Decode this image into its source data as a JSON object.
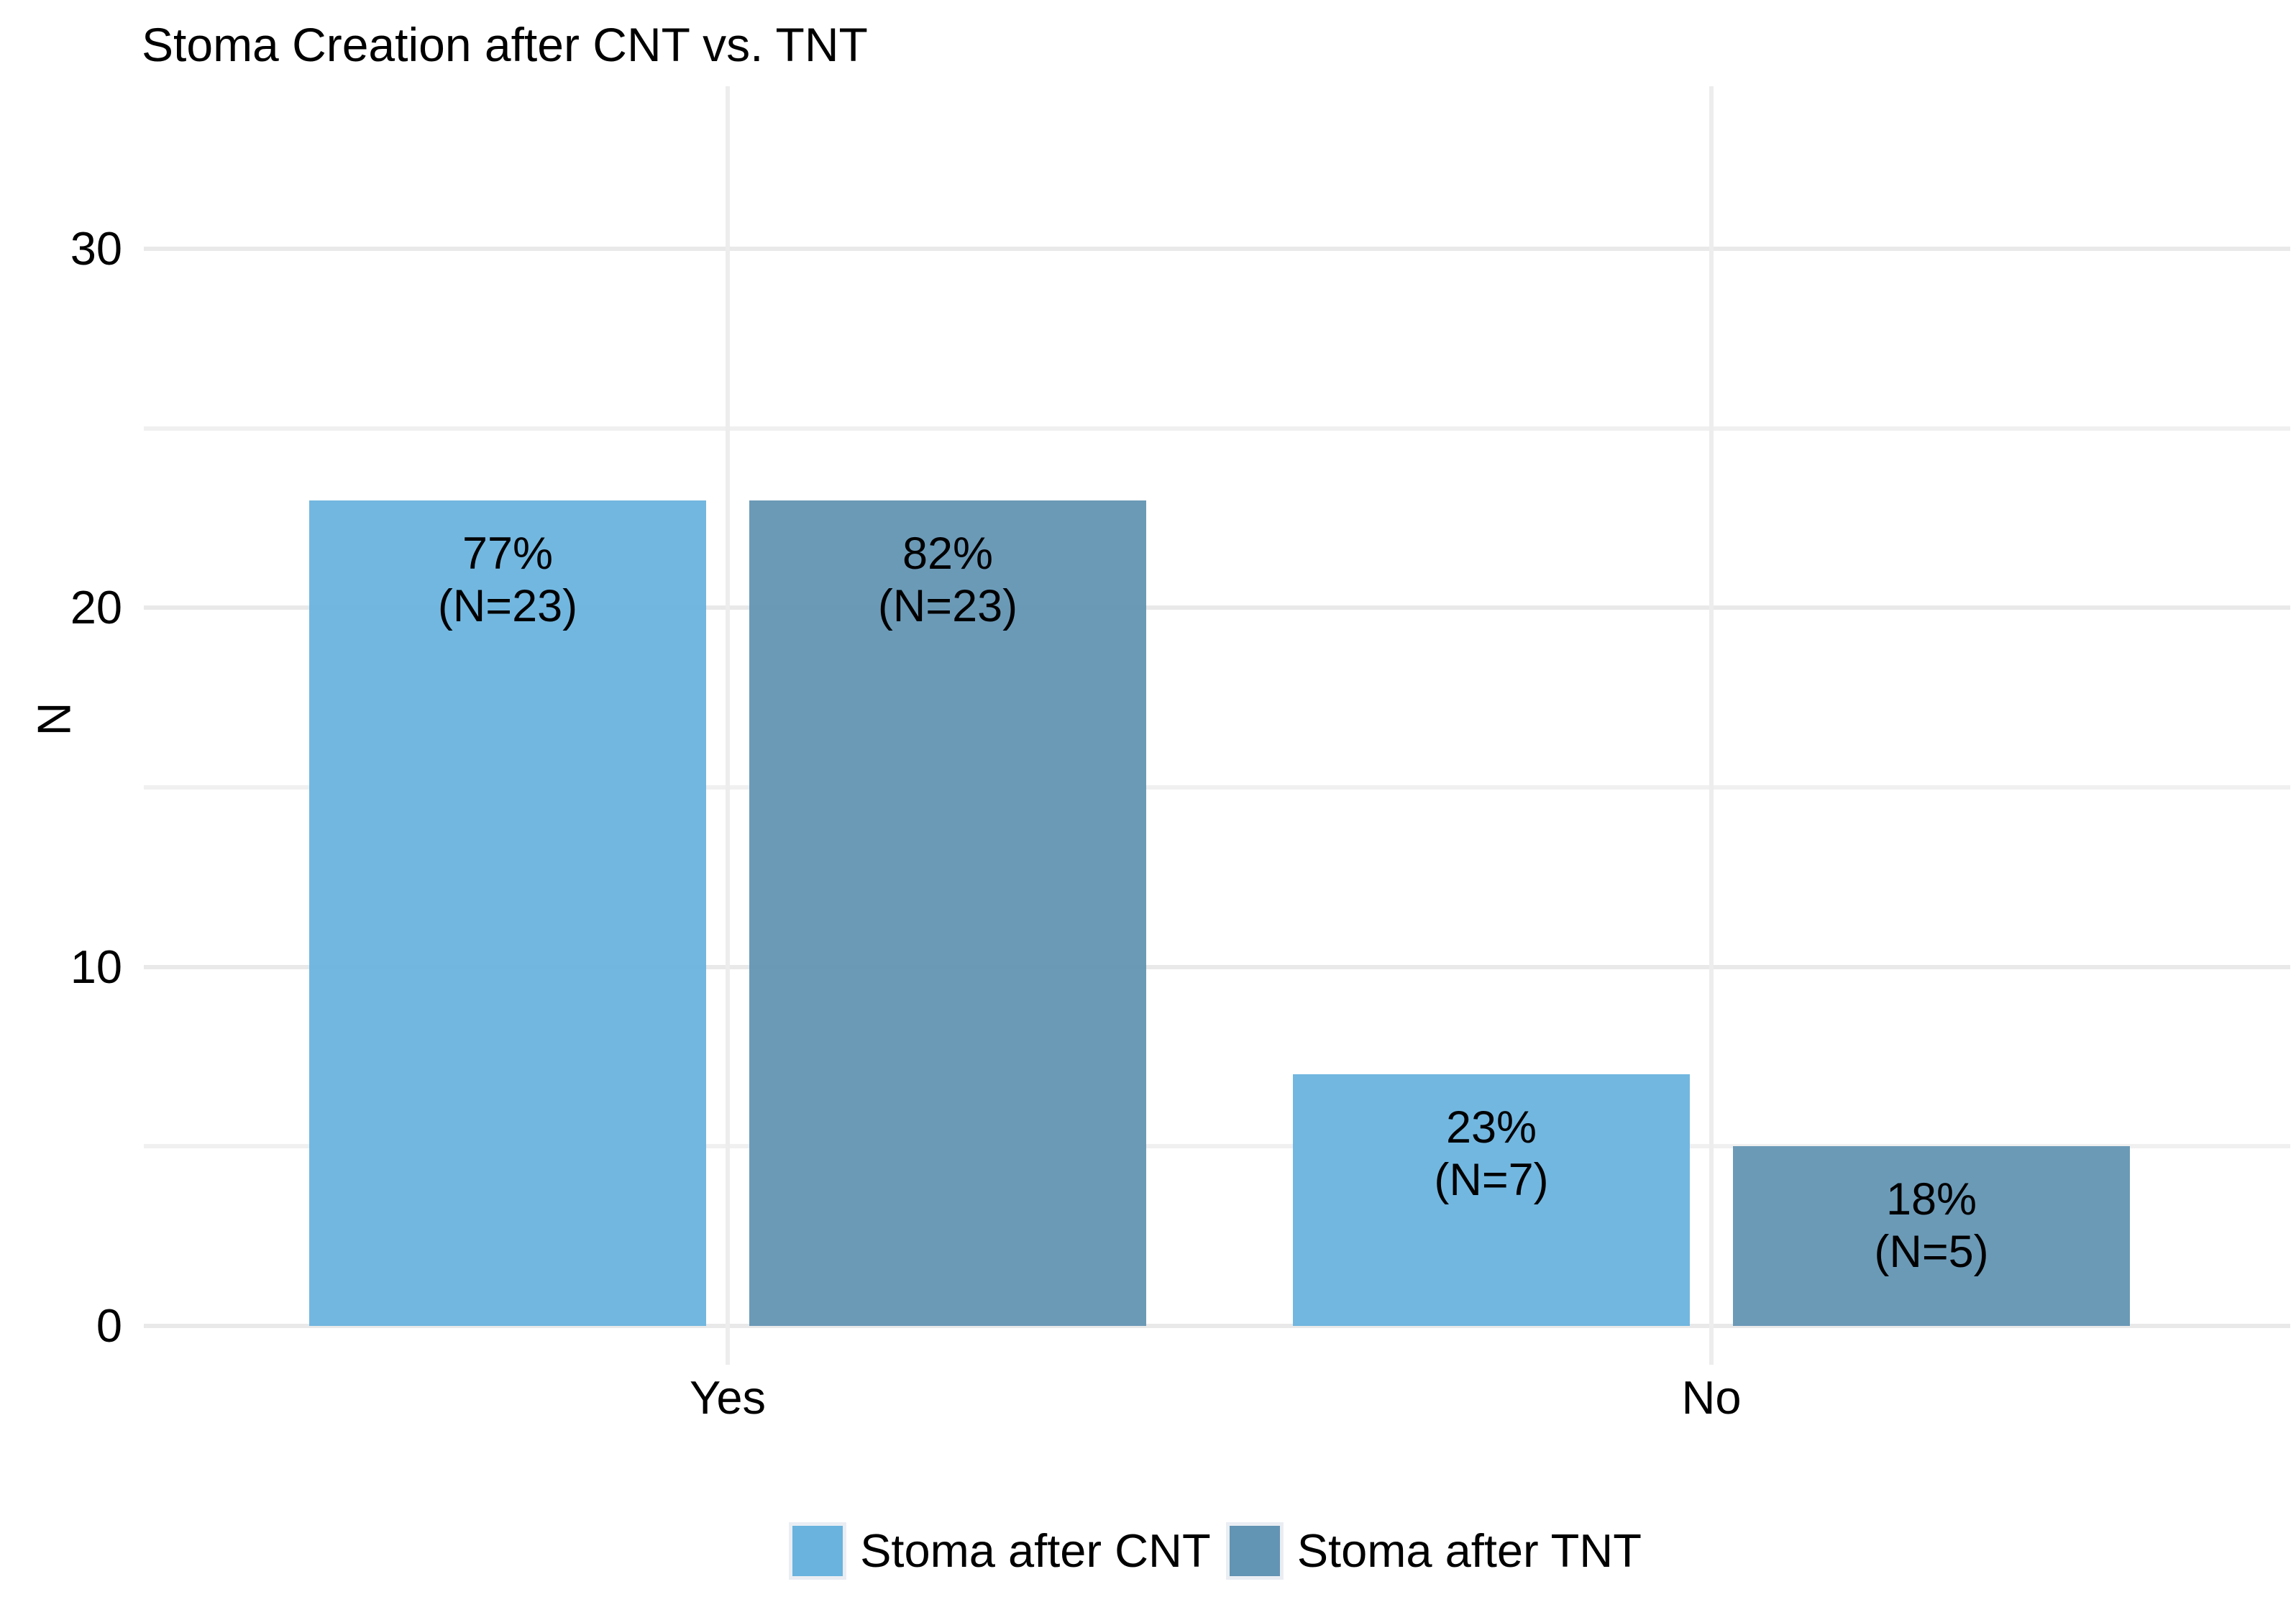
{
  "title": "Stoma Creation after CNT vs. TNT",
  "chart_data": {
    "type": "bar",
    "title": "Stoma Creation after CNT vs. TNT",
    "xlabel": "",
    "ylabel": "N",
    "categories": [
      "Yes",
      "No"
    ],
    "series": [
      {
        "name": "Stoma after CNT",
        "color": "#69b3de",
        "values": [
          23,
          7
        ],
        "labels": [
          [
            "77%",
            "(N=23)"
          ],
          [
            "23%",
            "(N=7)"
          ]
        ]
      },
      {
        "name": "Stoma after TNT",
        "color": "#6294b3",
        "values": [
          23,
          5
        ],
        "labels": [
          [
            "82%",
            "(N=23)"
          ],
          [
            "18%",
            "(N=5)"
          ]
        ]
      }
    ],
    "ylim": [
      0,
      34.5
    ],
    "yticks": [
      0,
      10,
      20,
      30
    ],
    "yminorticks": [
      5,
      15,
      25
    ],
    "grid": "horizontal major+minor, vertical at category centers",
    "legend_position": "bottom-center",
    "background": "#ffffff",
    "gridline_color": "#ececec",
    "label_color": "#000000"
  }
}
